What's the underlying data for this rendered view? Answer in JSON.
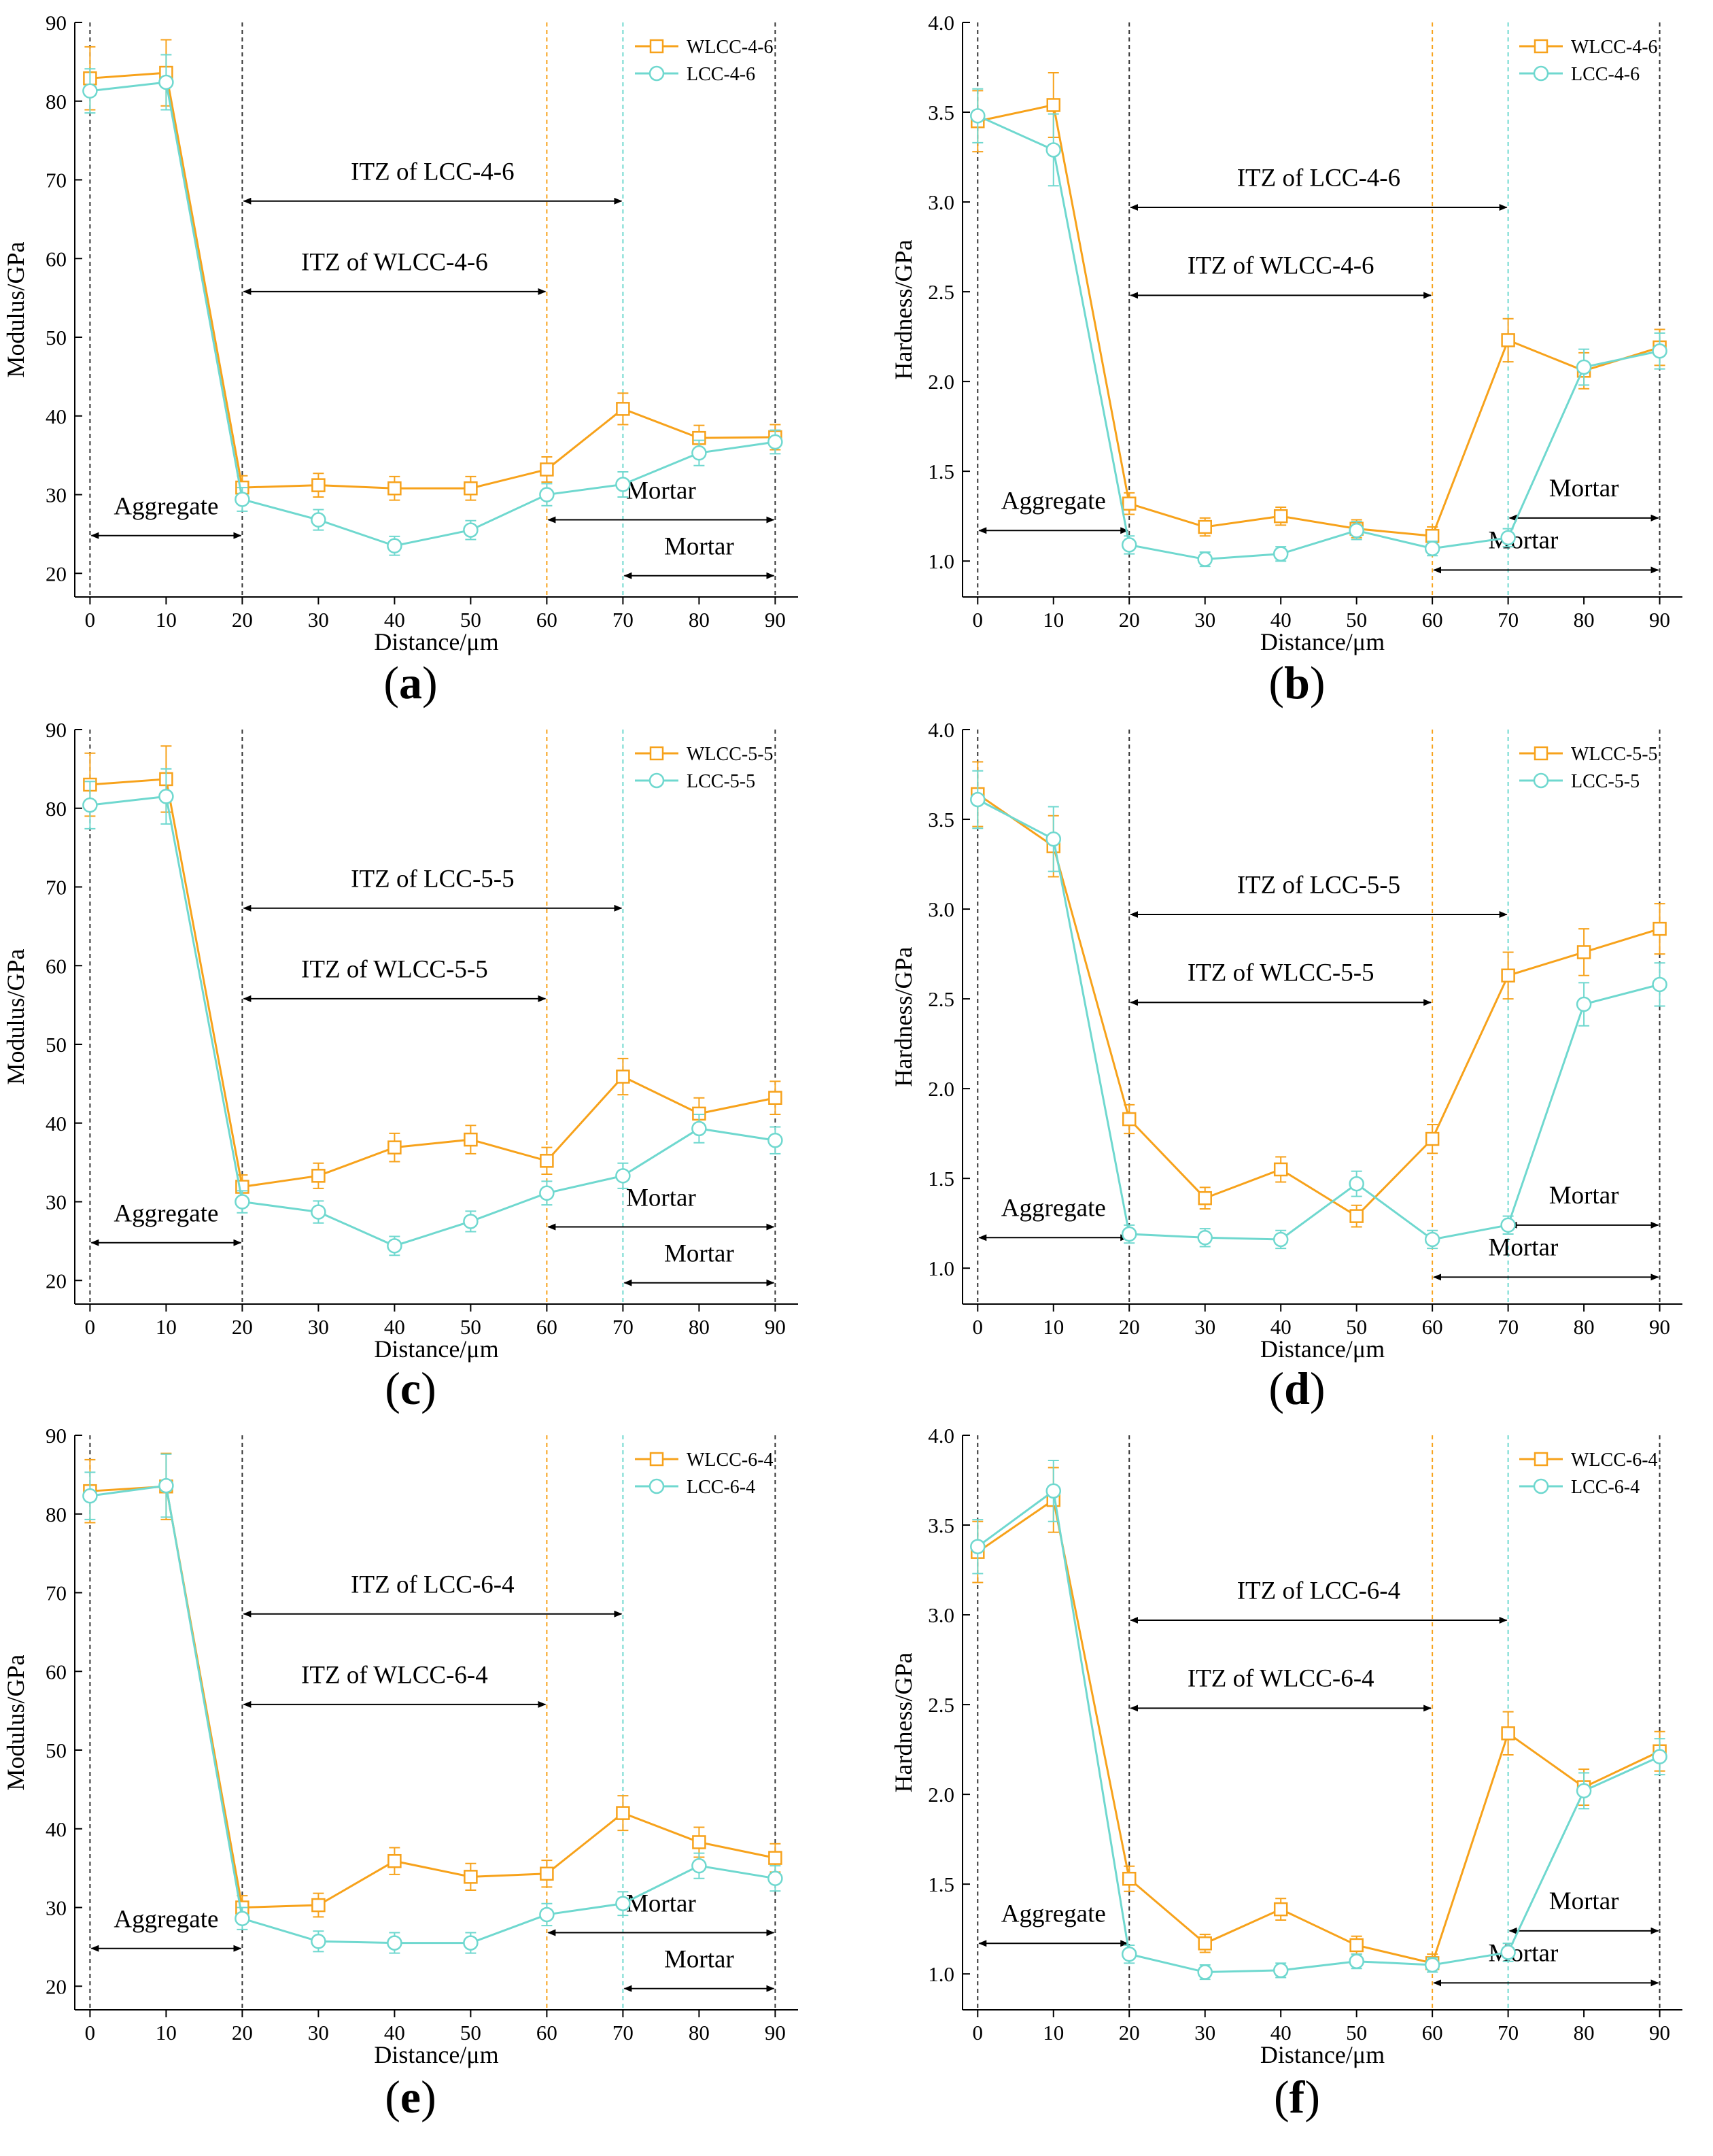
{
  "colors": {
    "wlcc": "#f7a21b",
    "lcc": "#6fd8cf",
    "ref": "#333333"
  },
  "chart_data": [
    {
      "id": "a",
      "type": "line",
      "panel_label": "a",
      "x": [
        0,
        10,
        20,
        30,
        40,
        50,
        60,
        70,
        80,
        90
      ],
      "xlabel": "Distance/μm",
      "ylabel": "Modulus/GPa",
      "xlim": [
        -2,
        93
      ],
      "ylim": [
        17,
        90
      ],
      "xticks": [
        0,
        10,
        20,
        30,
        40,
        50,
        60,
        70,
        80,
        90
      ],
      "yticks": [
        20,
        30,
        40,
        50,
        60,
        70,
        80,
        90
      ],
      "ytick_labels": [
        "20",
        "30",
        "40",
        "50",
        "60",
        "70",
        "80",
        "90"
      ],
      "series": [
        {
          "name": "WLCC-4-6",
          "color": "wlcc",
          "marker": "square",
          "values": [
            82.9,
            83.6,
            30.9,
            31.2,
            30.8,
            30.8,
            33.2,
            40.9,
            37.2,
            37.3
          ],
          "errors": [
            4.0,
            4.2,
            1.5,
            1.5,
            1.5,
            1.5,
            1.6,
            2.0,
            1.6,
            1.6
          ]
        },
        {
          "name": "LCC-4-6",
          "color": "lcc",
          "marker": "circle",
          "values": [
            81.3,
            82.4,
            29.4,
            26.8,
            23.5,
            25.5,
            30.0,
            31.3,
            35.3,
            36.7
          ],
          "errors": [
            2.8,
            3.5,
            1.5,
            1.3,
            1.2,
            1.2,
            1.4,
            1.6,
            1.6,
            1.5
          ]
        }
      ],
      "vlines": [
        {
          "x": 0,
          "color": "ref"
        },
        {
          "x": 20,
          "color": "ref"
        },
        {
          "x": 60,
          "color": "wlcc"
        },
        {
          "x": 70,
          "color": "lcc"
        },
        {
          "x": 90,
          "color": "ref"
        }
      ],
      "annotations": [
        {
          "text": "ITZ of LCC-4-6",
          "x1": 20,
          "x2": 70,
          "y": 67.3,
          "label_y": 70.0
        },
        {
          "text": "ITZ of WLCC-4-6",
          "x1": 20,
          "x2": 60,
          "y": 55.8,
          "label_y": 58.5
        },
        {
          "text": "Aggregate",
          "x1": 0,
          "x2": 20,
          "y": 24.8,
          "label_y": 27.5
        },
        {
          "text": "Mortar",
          "x1": 60,
          "x2": 90,
          "y": 26.8,
          "label_y": 29.5,
          "label_x": 75
        },
        {
          "text": "Mortar",
          "x1": 70,
          "x2": 90,
          "y": 19.7,
          "label_y": 22.4,
          "label_x": 80
        }
      ]
    },
    {
      "id": "b",
      "type": "line",
      "panel_label": "b",
      "x": [
        0,
        10,
        20,
        30,
        40,
        50,
        60,
        70,
        80,
        90
      ],
      "xlabel": "Distance/μm",
      "ylabel": "Hardness/GPa",
      "xlim": [
        -2,
        93
      ],
      "ylim": [
        0.8,
        4.0
      ],
      "xticks": [
        0,
        10,
        20,
        30,
        40,
        50,
        60,
        70,
        80,
        90
      ],
      "yticks": [
        1.0,
        1.5,
        2.0,
        2.5,
        3.0,
        3.5,
        4.0
      ],
      "ytick_labels": [
        "1.0",
        "1.5",
        "2.0",
        "2.5",
        "3.0",
        "3.5",
        "4.0"
      ],
      "series": [
        {
          "name": "WLCC-4-6",
          "color": "wlcc",
          "marker": "square",
          "values": [
            3.45,
            3.54,
            1.32,
            1.19,
            1.25,
            1.18,
            1.14,
            2.23,
            2.06,
            2.19
          ],
          "errors": [
            0.17,
            0.18,
            0.06,
            0.05,
            0.05,
            0.05,
            0.05,
            0.12,
            0.1,
            0.1
          ]
        },
        {
          "name": "LCC-4-6",
          "color": "lcc",
          "marker": "circle",
          "values": [
            3.48,
            3.29,
            1.09,
            1.01,
            1.04,
            1.17,
            1.07,
            1.13,
            2.08,
            2.17
          ],
          "errors": [
            0.15,
            0.2,
            0.05,
            0.04,
            0.04,
            0.05,
            0.04,
            0.05,
            0.1,
            0.1
          ]
        }
      ],
      "vlines": [
        {
          "x": 0,
          "color": "ref"
        },
        {
          "x": 20,
          "color": "ref"
        },
        {
          "x": 60,
          "color": "wlcc"
        },
        {
          "x": 70,
          "color": "lcc"
        },
        {
          "x": 90,
          "color": "ref"
        }
      ],
      "annotations": [
        {
          "text": "ITZ of LCC-4-6",
          "x1": 20,
          "x2": 70,
          "y": 2.97,
          "label_y": 3.09
        },
        {
          "text": "ITZ of WLCC-4-6",
          "x1": 20,
          "x2": 60,
          "y": 2.48,
          "label_y": 2.6
        },
        {
          "text": "Aggregate",
          "x1": 0,
          "x2": 20,
          "y": 1.17,
          "label_y": 1.29
        },
        {
          "text": "Mortar",
          "x1": 70,
          "x2": 90,
          "y": 1.24,
          "label_y": 1.36,
          "label_x": 80
        },
        {
          "text": "Mortar",
          "x1": 60,
          "x2": 90,
          "y": 0.95,
          "label_y": 1.07,
          "label_x": 72
        }
      ]
    },
    {
      "id": "c",
      "type": "line",
      "panel_label": "c",
      "x": [
        0,
        10,
        20,
        30,
        40,
        50,
        60,
        70,
        80,
        90
      ],
      "xlabel": "Distance/μm",
      "ylabel": "Modulus/GPa",
      "xlim": [
        -2,
        93
      ],
      "ylim": [
        17,
        90
      ],
      "xticks": [
        0,
        10,
        20,
        30,
        40,
        50,
        60,
        70,
        80,
        90
      ],
      "yticks": [
        20,
        30,
        40,
        50,
        60,
        70,
        80,
        90
      ],
      "ytick_labels": [
        "20",
        "30",
        "40",
        "50",
        "60",
        "70",
        "80",
        "90"
      ],
      "series": [
        {
          "name": "WLCC-5-5",
          "color": "wlcc",
          "marker": "square",
          "values": [
            83.0,
            83.7,
            31.9,
            33.3,
            36.9,
            37.9,
            35.2,
            45.9,
            41.2,
            43.2
          ],
          "errors": [
            4.0,
            4.2,
            1.5,
            1.6,
            1.8,
            1.8,
            1.7,
            2.3,
            2.0,
            2.1
          ]
        },
        {
          "name": "LCC-5-5",
          "color": "lcc",
          "marker": "circle",
          "values": [
            80.4,
            81.5,
            30.0,
            28.7,
            24.4,
            27.5,
            31.1,
            33.3,
            39.3,
            37.8
          ],
          "errors": [
            3.0,
            3.5,
            1.4,
            1.4,
            1.2,
            1.3,
            1.5,
            1.6,
            1.8,
            1.7
          ]
        }
      ],
      "vlines": [
        {
          "x": 0,
          "color": "ref"
        },
        {
          "x": 20,
          "color": "ref"
        },
        {
          "x": 60,
          "color": "wlcc"
        },
        {
          "x": 70,
          "color": "lcc"
        },
        {
          "x": 90,
          "color": "ref"
        }
      ],
      "annotations": [
        {
          "text": "ITZ of LCC-5-5",
          "x1": 20,
          "x2": 70,
          "y": 67.3,
          "label_y": 70.0
        },
        {
          "text": "ITZ of WLCC-5-5",
          "x1": 20,
          "x2": 60,
          "y": 55.8,
          "label_y": 58.5
        },
        {
          "text": "Aggregate",
          "x1": 0,
          "x2": 20,
          "y": 24.8,
          "label_y": 27.5
        },
        {
          "text": "Mortar",
          "x1": 60,
          "x2": 90,
          "y": 26.8,
          "label_y": 29.5,
          "label_x": 75
        },
        {
          "text": "Mortar",
          "x1": 70,
          "x2": 90,
          "y": 19.7,
          "label_y": 22.4,
          "label_x": 80
        }
      ]
    },
    {
      "id": "d",
      "type": "line",
      "panel_label": "d",
      "x": [
        0,
        10,
        20,
        30,
        40,
        50,
        60,
        70,
        80,
        90
      ],
      "xlabel": "Distance/μm",
      "ylabel": "Hardness/GPa",
      "xlim": [
        -2,
        93
      ],
      "ylim": [
        0.8,
        4.0
      ],
      "xticks": [
        0,
        10,
        20,
        30,
        40,
        50,
        60,
        70,
        80,
        90
      ],
      "yticks": [
        1.0,
        1.5,
        2.0,
        2.5,
        3.0,
        3.5,
        4.0
      ],
      "ytick_labels": [
        "1.0",
        "1.5",
        "2.0",
        "2.5",
        "3.0",
        "3.5",
        "4.0"
      ],
      "series": [
        {
          "name": "WLCC-5-5",
          "color": "wlcc",
          "marker": "square",
          "values": [
            3.64,
            3.35,
            1.83,
            1.39,
            1.55,
            1.29,
            1.72,
            2.63,
            2.76,
            2.89
          ],
          "errors": [
            0.18,
            0.17,
            0.08,
            0.06,
            0.07,
            0.06,
            0.08,
            0.13,
            0.13,
            0.14
          ]
        },
        {
          "name": "LCC-5-5",
          "color": "lcc",
          "marker": "circle",
          "values": [
            3.61,
            3.39,
            1.19,
            1.17,
            1.16,
            1.47,
            1.16,
            1.24,
            2.47,
            2.58
          ],
          "errors": [
            0.16,
            0.18,
            0.05,
            0.05,
            0.05,
            0.07,
            0.05,
            0.05,
            0.12,
            0.12
          ]
        }
      ],
      "vlines": [
        {
          "x": 0,
          "color": "ref"
        },
        {
          "x": 20,
          "color": "ref"
        },
        {
          "x": 60,
          "color": "wlcc"
        },
        {
          "x": 70,
          "color": "lcc"
        },
        {
          "x": 90,
          "color": "ref"
        }
      ],
      "annotations": [
        {
          "text": "ITZ of LCC-5-5",
          "x1": 20,
          "x2": 70,
          "y": 2.97,
          "label_y": 3.09
        },
        {
          "text": "ITZ of WLCC-5-5",
          "x1": 20,
          "x2": 60,
          "y": 2.48,
          "label_y": 2.6
        },
        {
          "text": "Aggregate",
          "x1": 0,
          "x2": 20,
          "y": 1.17,
          "label_y": 1.29
        },
        {
          "text": "Mortar",
          "x1": 70,
          "x2": 90,
          "y": 1.24,
          "label_y": 1.36,
          "label_x": 80
        },
        {
          "text": "Mortar",
          "x1": 60,
          "x2": 90,
          "y": 0.95,
          "label_y": 1.07,
          "label_x": 72
        }
      ]
    },
    {
      "id": "e",
      "type": "line",
      "panel_label": "e",
      "x": [
        0,
        10,
        20,
        30,
        40,
        50,
        60,
        70,
        80,
        90
      ],
      "xlabel": "Distance/μm",
      "ylabel": "Modulus/GPa",
      "xlim": [
        -2,
        93
      ],
      "ylim": [
        17,
        90
      ],
      "xticks": [
        0,
        10,
        20,
        30,
        40,
        50,
        60,
        70,
        80,
        90
      ],
      "yticks": [
        20,
        30,
        40,
        50,
        60,
        70,
        80,
        90
      ],
      "ytick_labels": [
        "20",
        "30",
        "40",
        "50",
        "60",
        "70",
        "80",
        "90"
      ],
      "series": [
        {
          "name": "WLCC-6-4",
          "color": "wlcc",
          "marker": "square",
          "values": [
            82.9,
            83.5,
            30.0,
            30.3,
            35.9,
            33.9,
            34.3,
            42.0,
            38.3,
            36.3
          ],
          "errors": [
            4.0,
            4.2,
            1.5,
            1.5,
            1.7,
            1.7,
            1.7,
            2.2,
            1.9,
            1.8
          ]
        },
        {
          "name": "LCC-6-4",
          "color": "lcc",
          "marker": "circle",
          "values": [
            82.3,
            83.6,
            28.6,
            25.7,
            25.5,
            25.5,
            29.1,
            30.5,
            35.3,
            33.7
          ],
          "errors": [
            3.0,
            4.0,
            1.4,
            1.3,
            1.3,
            1.3,
            1.4,
            1.5,
            1.6,
            1.6
          ]
        }
      ],
      "vlines": [
        {
          "x": 0,
          "color": "ref"
        },
        {
          "x": 20,
          "color": "ref"
        },
        {
          "x": 60,
          "color": "wlcc"
        },
        {
          "x": 70,
          "color": "lcc"
        },
        {
          "x": 90,
          "color": "ref"
        }
      ],
      "annotations": [
        {
          "text": "ITZ of LCC-6-4",
          "x1": 20,
          "x2": 70,
          "y": 67.3,
          "label_y": 70.0
        },
        {
          "text": "ITZ of WLCC-6-4",
          "x1": 20,
          "x2": 60,
          "y": 55.8,
          "label_y": 58.5
        },
        {
          "text": "Aggregate",
          "x1": 0,
          "x2": 20,
          "y": 24.8,
          "label_y": 27.5
        },
        {
          "text": "Mortar",
          "x1": 60,
          "x2": 90,
          "y": 26.8,
          "label_y": 29.5,
          "label_x": 75
        },
        {
          "text": "Mortar",
          "x1": 70,
          "x2": 90,
          "y": 19.7,
          "label_y": 22.4,
          "label_x": 80
        }
      ]
    },
    {
      "id": "f",
      "type": "line",
      "panel_label": "f",
      "x": [
        0,
        10,
        20,
        30,
        40,
        50,
        60,
        70,
        80,
        90
      ],
      "xlabel": "Distance/μm",
      "ylabel": "Hardness/GPa",
      "xlim": [
        -2,
        93
      ],
      "ylim": [
        0.8,
        4.0
      ],
      "xticks": [
        0,
        10,
        20,
        30,
        40,
        50,
        60,
        70,
        80,
        90
      ],
      "yticks": [
        1.0,
        1.5,
        2.0,
        2.5,
        3.0,
        3.5,
        4.0
      ],
      "ytick_labels": [
        "1.0",
        "1.5",
        "2.0",
        "2.5",
        "3.0",
        "3.5",
        "4.0"
      ],
      "series": [
        {
          "name": "WLCC-6-4",
          "color": "wlcc",
          "marker": "square",
          "values": [
            3.35,
            3.64,
            1.53,
            1.17,
            1.36,
            1.16,
            1.06,
            2.34,
            2.04,
            2.24
          ],
          "errors": [
            0.17,
            0.18,
            0.07,
            0.05,
            0.06,
            0.05,
            0.05,
            0.12,
            0.1,
            0.11
          ]
        },
        {
          "name": "LCC-6-4",
          "color": "lcc",
          "marker": "circle",
          "values": [
            3.38,
            3.69,
            1.11,
            1.01,
            1.02,
            1.07,
            1.05,
            1.12,
            2.02,
            2.21
          ],
          "errors": [
            0.15,
            0.17,
            0.05,
            0.04,
            0.04,
            0.04,
            0.04,
            0.05,
            0.1,
            0.1
          ]
        }
      ],
      "vlines": [
        {
          "x": 0,
          "color": "ref"
        },
        {
          "x": 20,
          "color": "ref"
        },
        {
          "x": 60,
          "color": "wlcc"
        },
        {
          "x": 70,
          "color": "lcc"
        },
        {
          "x": 90,
          "color": "ref"
        }
      ],
      "annotations": [
        {
          "text": "ITZ of LCC-6-4",
          "x1": 20,
          "x2": 70,
          "y": 2.97,
          "label_y": 3.09
        },
        {
          "text": "ITZ of WLCC-6-4",
          "x1": 20,
          "x2": 60,
          "y": 2.48,
          "label_y": 2.6
        },
        {
          "text": "Aggregate",
          "x1": 0,
          "x2": 20,
          "y": 1.17,
          "label_y": 1.29
        },
        {
          "text": "Mortar",
          "x1": 70,
          "x2": 90,
          "y": 1.24,
          "label_y": 1.36,
          "label_x": 80
        },
        {
          "text": "Mortar",
          "x1": 60,
          "x2": 90,
          "y": 0.95,
          "label_y": 1.07,
          "label_x": 72
        }
      ]
    }
  ]
}
